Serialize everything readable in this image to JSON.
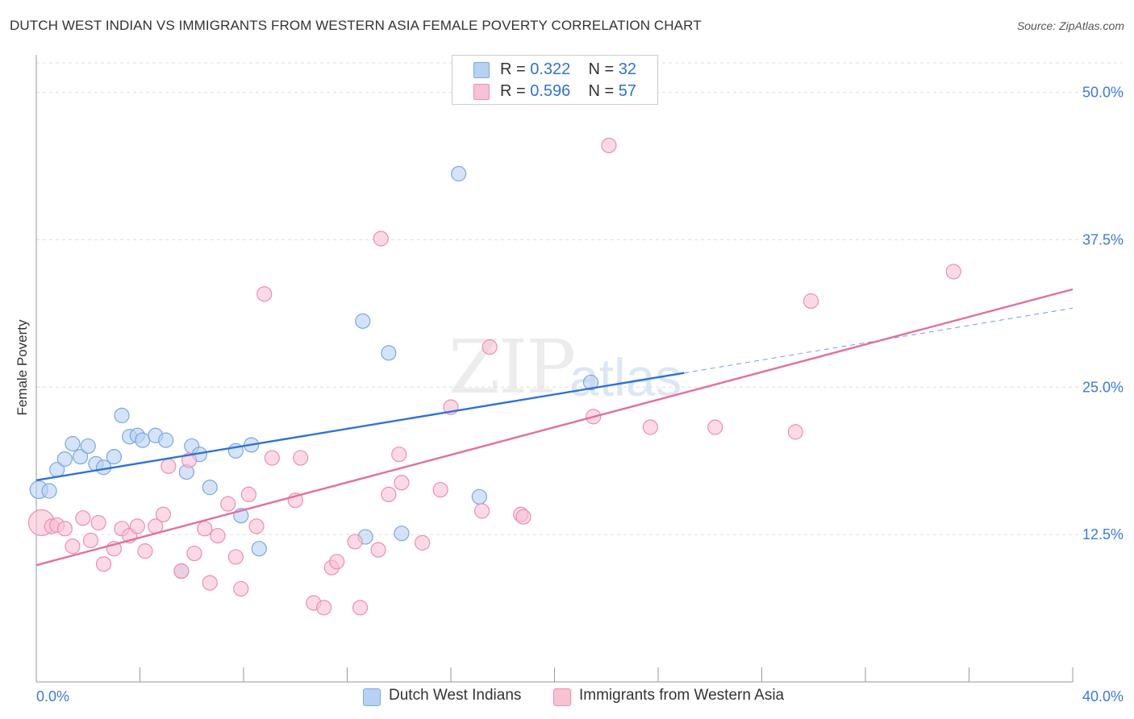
{
  "header": {
    "title": "DUTCH WEST INDIAN VS IMMIGRANTS FROM WESTERN ASIA FEMALE POVERTY CORRELATION CHART",
    "source": "Source: ZipAtlas.com"
  },
  "watermark": {
    "zip": "ZIP",
    "atlas": "atlas"
  },
  "legend_top": {
    "r_label": "R = ",
    "n_label": "N = ",
    "rows": [
      {
        "r": "0.322",
        "n": "32"
      },
      {
        "r": "0.596",
        "n": "57"
      }
    ]
  },
  "colors": {
    "blue_fill": "#b7d1f3",
    "blue_stroke": "#7aa8e0",
    "blue_line": "#2f73d4",
    "pink_fill": "#f8c2d3",
    "pink_stroke": "#ec8fae",
    "pink_line": "#e2709b",
    "tick_text": "#3d7bd9",
    "grid": "#dddddd"
  },
  "chart_data": {
    "type": "scatter",
    "title": "DUTCH WEST INDIAN VS IMMIGRANTS FROM WESTERN ASIA FEMALE POVERTY CORRELATION CHART",
    "xlabel": "",
    "ylabel": "Female Poverty",
    "xlim": [
      0,
      40
    ],
    "ylim": [
      0,
      52.5
    ],
    "x_tick_labels": [
      "0.0%",
      "40.0%"
    ],
    "y_ticks": [
      12.5,
      25.0,
      37.5,
      50.0
    ],
    "y_tick_labels": [
      "12.5%",
      "25.0%",
      "37.5%",
      "50.0%"
    ],
    "grid": true,
    "legend_position": "bottom",
    "series": [
      {
        "name": "Dutch West Indians",
        "color": "#b7d1f3",
        "r": 0.322,
        "n": 32,
        "points": [
          [
            0.1,
            16.3
          ],
          [
            0.5,
            16.2
          ],
          [
            0.8,
            18.0
          ],
          [
            1.1,
            18.9
          ],
          [
            1.4,
            20.2
          ],
          [
            1.7,
            19.1
          ],
          [
            2.0,
            20.0
          ],
          [
            2.3,
            18.5
          ],
          [
            2.6,
            18.2
          ],
          [
            3.0,
            19.1
          ],
          [
            3.3,
            22.6
          ],
          [
            3.6,
            20.8
          ],
          [
            3.9,
            20.9
          ],
          [
            4.1,
            20.5
          ],
          [
            4.6,
            20.9
          ],
          [
            5.0,
            20.5
          ],
          [
            5.6,
            9.4
          ],
          [
            5.8,
            17.8
          ],
          [
            6.0,
            20.0
          ],
          [
            6.3,
            19.3
          ],
          [
            6.7,
            16.5
          ],
          [
            7.7,
            19.6
          ],
          [
            7.9,
            14.1
          ],
          [
            8.3,
            20.1
          ],
          [
            8.6,
            11.3
          ],
          [
            12.7,
            12.3
          ],
          [
            12.6,
            30.6
          ],
          [
            13.6,
            27.9
          ],
          [
            14.1,
            12.6
          ],
          [
            16.3,
            43.1
          ],
          [
            17.1,
            15.7
          ],
          [
            21.4,
            25.4
          ]
        ],
        "trend": {
          "x": [
            0,
            25
          ],
          "y": [
            17.1,
            26.2
          ]
        },
        "trend_dashed": {
          "x": [
            25,
            40
          ],
          "y": [
            26.2,
            31.7
          ]
        }
      },
      {
        "name": "Immigrants from Western Asia",
        "color": "#f8c2d3",
        "r": 0.596,
        "n": 57,
        "points": [
          [
            0.2,
            13.5
          ],
          [
            0.6,
            13.2
          ],
          [
            0.8,
            13.3
          ],
          [
            1.1,
            13.0
          ],
          [
            1.4,
            11.5
          ],
          [
            1.8,
            13.9
          ],
          [
            2.1,
            12.0
          ],
          [
            2.4,
            13.5
          ],
          [
            2.6,
            10.0
          ],
          [
            3.0,
            11.3
          ],
          [
            3.3,
            13.0
          ],
          [
            3.6,
            12.4
          ],
          [
            3.9,
            13.2
          ],
          [
            4.2,
            11.1
          ],
          [
            4.6,
            13.2
          ],
          [
            4.9,
            14.2
          ],
          [
            5.1,
            18.3
          ],
          [
            5.6,
            9.4
          ],
          [
            5.9,
            18.8
          ],
          [
            6.1,
            10.9
          ],
          [
            6.5,
            13.0
          ],
          [
            6.7,
            8.4
          ],
          [
            7.0,
            12.4
          ],
          [
            7.4,
            15.1
          ],
          [
            7.7,
            10.6
          ],
          [
            7.9,
            7.9
          ],
          [
            8.2,
            15.9
          ],
          [
            8.5,
            13.2
          ],
          [
            8.8,
            32.9
          ],
          [
            9.1,
            19.0
          ],
          [
            10.0,
            15.4
          ],
          [
            10.2,
            19.0
          ],
          [
            10.7,
            6.7
          ],
          [
            11.1,
            6.3
          ],
          [
            11.4,
            9.7
          ],
          [
            11.6,
            10.2
          ],
          [
            12.3,
            11.9
          ],
          [
            12.5,
            6.3
          ],
          [
            13.2,
            11.2
          ],
          [
            13.3,
            37.6
          ],
          [
            13.6,
            15.9
          ],
          [
            14.0,
            19.3
          ],
          [
            14.1,
            16.9
          ],
          [
            14.9,
            11.8
          ],
          [
            15.6,
            16.3
          ],
          [
            16.0,
            23.3
          ],
          [
            17.2,
            14.5
          ],
          [
            17.5,
            28.4
          ],
          [
            18.7,
            14.2
          ],
          [
            18.8,
            14.0
          ],
          [
            22.1,
            45.5
          ],
          [
            21.5,
            22.5
          ],
          [
            23.7,
            21.6
          ],
          [
            26.2,
            21.6
          ],
          [
            29.3,
            21.2
          ],
          [
            29.9,
            32.3
          ],
          [
            35.4,
            34.8
          ]
        ],
        "trend": {
          "x": [
            0,
            40
          ],
          "y": [
            9.9,
            33.3
          ]
        }
      }
    ]
  }
}
